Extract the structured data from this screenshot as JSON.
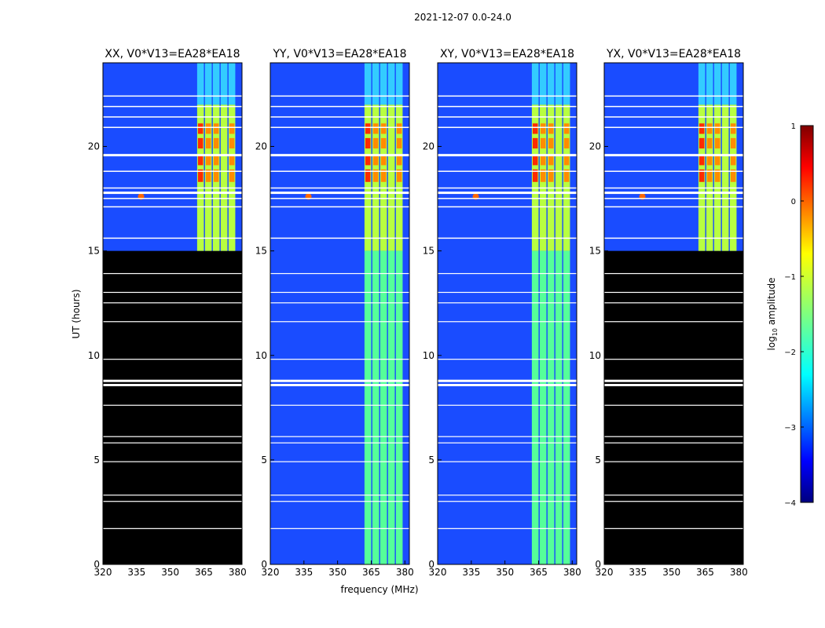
{
  "chart_data": {
    "type": "heatmap",
    "suptitle": "2021-12-07 0.0-24.0",
    "xlabel": "frequency (MHz)",
    "ylabel": "UT (hours)",
    "xlim": [
      320,
      382
    ],
    "ylim": [
      0,
      24
    ],
    "x_ticks": [
      320,
      335,
      350,
      365,
      380
    ],
    "y_ticks": [
      0,
      5,
      10,
      15,
      20
    ],
    "panels": [
      {
        "title": "XX, V0*V13=EA28*EA18",
        "data_start_hour": 15
      },
      {
        "title": "YY, V0*V13=EA28*EA18",
        "data_start_hour": 0
      },
      {
        "title": "XY, V0*V13=EA28*EA18",
        "data_start_hour": 0
      },
      {
        "title": "YX, V0*V13=EA28*EA18",
        "data_start_hour": 15
      }
    ],
    "rfi_band_mhz": [
      362,
      380
    ],
    "colorbar": {
      "label": "log",
      "label_sub": "10",
      "label_suffix": " amplitude",
      "min": -4,
      "max": 1,
      "ticks": [
        -4,
        -3,
        -2,
        -1,
        0,
        1
      ],
      "tick_labels": [
        "−4",
        "−3",
        "−2",
        "−1",
        "0",
        "1"
      ]
    }
  }
}
